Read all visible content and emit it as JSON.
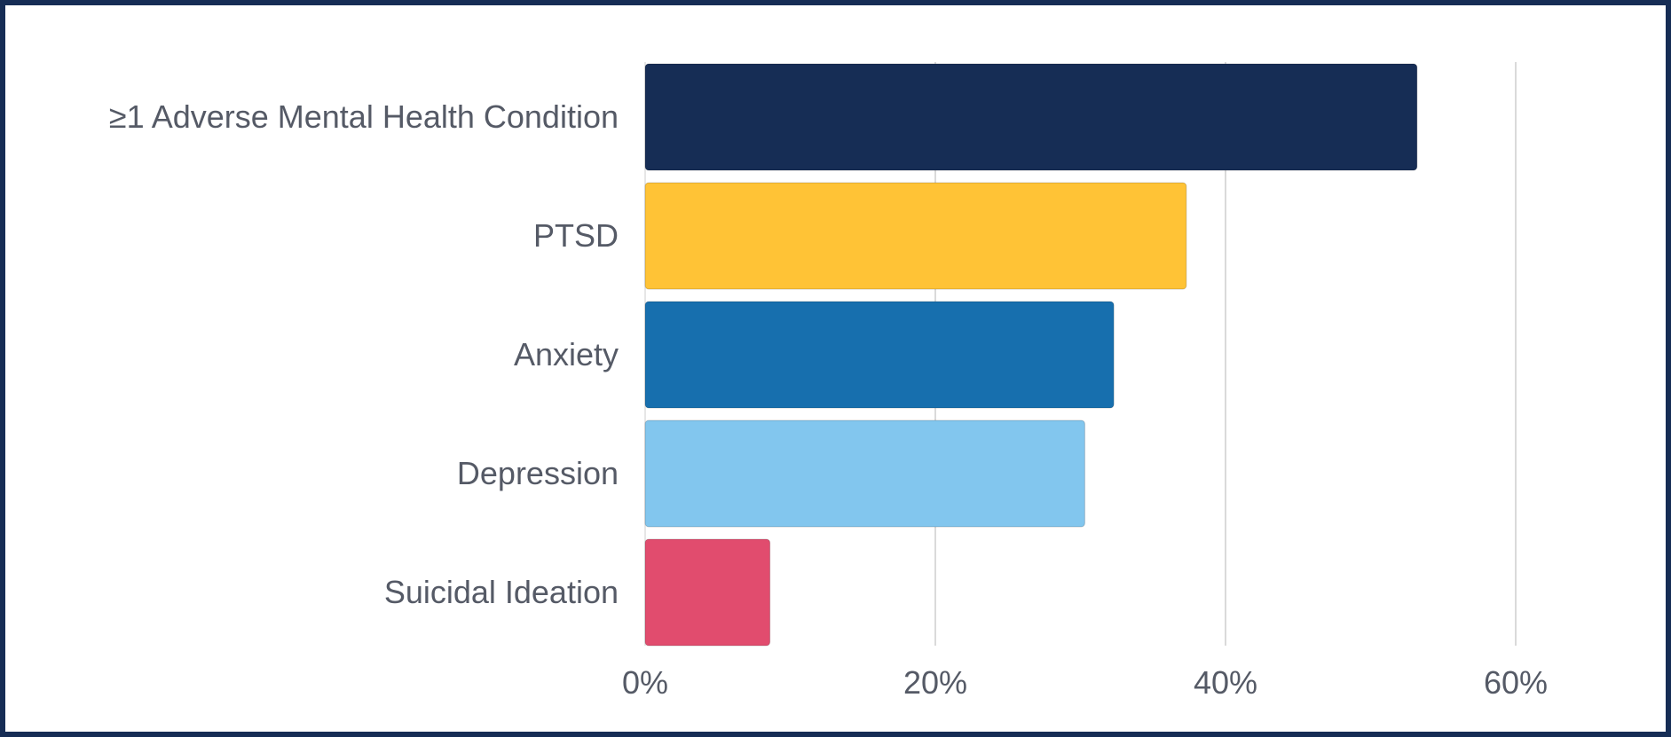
{
  "chart_data": {
    "type": "bar",
    "orientation": "horizontal",
    "title": "",
    "xlabel": "",
    "ylabel": "",
    "xlim": [
      0,
      60
    ],
    "x_ticks": [
      0,
      20,
      40,
      60
    ],
    "x_tick_labels": [
      "0%",
      "20%",
      "40%",
      "60%"
    ],
    "grid": true,
    "categories": [
      "≥1 Adverse Mental Health Condition",
      "PTSD",
      "Anxiety",
      "Depression",
      "Suicidal Ideation"
    ],
    "values": [
      53.2,
      37.3,
      32.3,
      30.3,
      8.6
    ],
    "colors": [
      "#162d55",
      "#ffc336",
      "#176fae",
      "#82c6ee",
      "#e14c6e"
    ]
  },
  "frame_color": "#162d55"
}
